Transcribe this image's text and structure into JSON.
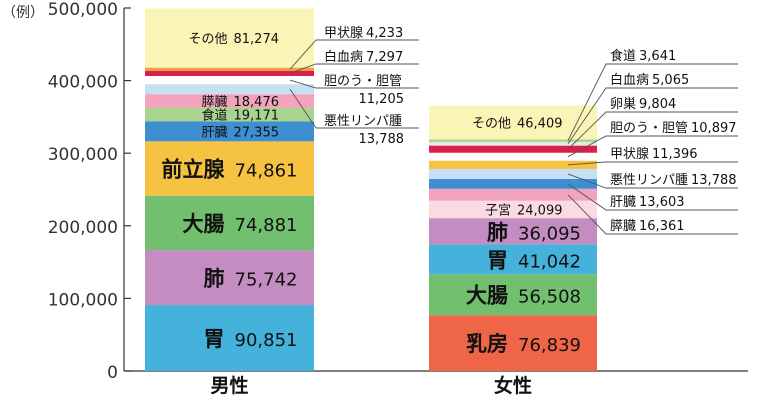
{
  "chart_data": {
    "type": "bar",
    "stacked": true,
    "title": "",
    "xlabel": "",
    "ylabel": "",
    "y_unit_label": "（例）",
    "ylim": [
      0,
      500000
    ],
    "yticks": [
      "0",
      "100,000",
      "200,000",
      "300,000",
      "400,000",
      "500,000"
    ],
    "ytick_values": [
      0,
      100000,
      200000,
      300000,
      400000,
      500000
    ],
    "grid": false,
    "categories": [
      "男性",
      "女性"
    ],
    "stacks": [
      {
        "category": "男性",
        "segments": [
          {
            "label": "胃",
            "value": 90851,
            "value_text": "90,851",
            "color": "#45b2dc",
            "display": "inside-large"
          },
          {
            "label": "肺",
            "value": 75742,
            "value_text": "75,742",
            "color": "#c48dc2",
            "display": "inside-large"
          },
          {
            "label": "大腸",
            "value": 74881,
            "value_text": "74,881",
            "color": "#72bf6f",
            "display": "inside-large"
          },
          {
            "label": "前立腺",
            "value": 74861,
            "value_text": "74,861",
            "color": "#f5c242",
            "display": "inside-large"
          },
          {
            "label": "肝臓",
            "value": 27355,
            "value_text": "27,355",
            "color": "#3d8fd1",
            "display": "inside-small"
          },
          {
            "label": "食道",
            "value": 19171,
            "value_text": "19,171",
            "color": "#a8d48f",
            "display": "inside-small"
          },
          {
            "label": "膵臓",
            "value": 18476,
            "value_text": "18,476",
            "color": "#f3a3bd",
            "display": "inside-small"
          },
          {
            "label": "悪性リンパ腫",
            "value": 13788,
            "value_text": "13,788",
            "color": "#c7dff2",
            "display": "callout"
          },
          {
            "label": "胆のう・胆管",
            "value": 11205,
            "value_text": "11,205",
            "color": "#ffffff",
            "display": "callout"
          },
          {
            "label": "白血病",
            "value": 7297,
            "value_text": "7,297",
            "color": "#d9204a",
            "display": "callout"
          },
          {
            "label": "甲状腺",
            "value": 4233,
            "value_text": "4,233",
            "color": "#f0a23a",
            "display": "callout"
          },
          {
            "label": "その他",
            "value": 81274,
            "value_text": "81,274",
            "color": "#faf4b6",
            "display": "inside-small"
          }
        ]
      },
      {
        "category": "女性",
        "segments": [
          {
            "label": "乳房",
            "value": 76839,
            "value_text": "76,839",
            "color": "#ee6548",
            "display": "inside-large"
          },
          {
            "label": "大腸",
            "value": 56508,
            "value_text": "56,508",
            "color": "#72bf6f",
            "display": "inside-large"
          },
          {
            "label": "胃",
            "value": 41042,
            "value_text": "41,042",
            "color": "#45b2dc",
            "display": "inside-large"
          },
          {
            "label": "肺",
            "value": 36095,
            "value_text": "36,095",
            "color": "#c48dc2",
            "display": "inside-large"
          },
          {
            "label": "子宮",
            "value": 24099,
            "value_text": "24,099",
            "color": "#fadbe3",
            "display": "inside-small"
          },
          {
            "label": "膵臓",
            "value": 16361,
            "value_text": "16,361",
            "color": "#f3a3bd",
            "display": "callout"
          },
          {
            "label": "肝臓",
            "value": 13603,
            "value_text": "13,603",
            "color": "#3d8fd1",
            "display": "callout"
          },
          {
            "label": "悪性リンパ腫",
            "value": 13788,
            "value_text": "13,788",
            "color": "#c7dff2",
            "display": "callout"
          },
          {
            "label": "甲状腺",
            "value": 11396,
            "value_text": "11,396",
            "color": "#f5c242",
            "display": "callout"
          },
          {
            "label": "胆のう・胆管",
            "value": 10897,
            "value_text": "10,897",
            "color": "#ffffff",
            "display": "callout"
          },
          {
            "label": "卵巣",
            "value": 9804,
            "value_text": "9,804",
            "color": "#d9204a",
            "display": "callout"
          },
          {
            "label": "白血病",
            "value": 5065,
            "value_text": "5,065",
            "color": "#e8e8e8",
            "display": "callout"
          },
          {
            "label": "食道",
            "value": 3641,
            "value_text": "3,641",
            "color": "#a8d48f",
            "display": "callout"
          },
          {
            "label": "その他",
            "value": 46409,
            "value_text": "46,409",
            "color": "#faf4b6",
            "display": "inside-small"
          }
        ]
      }
    ]
  }
}
